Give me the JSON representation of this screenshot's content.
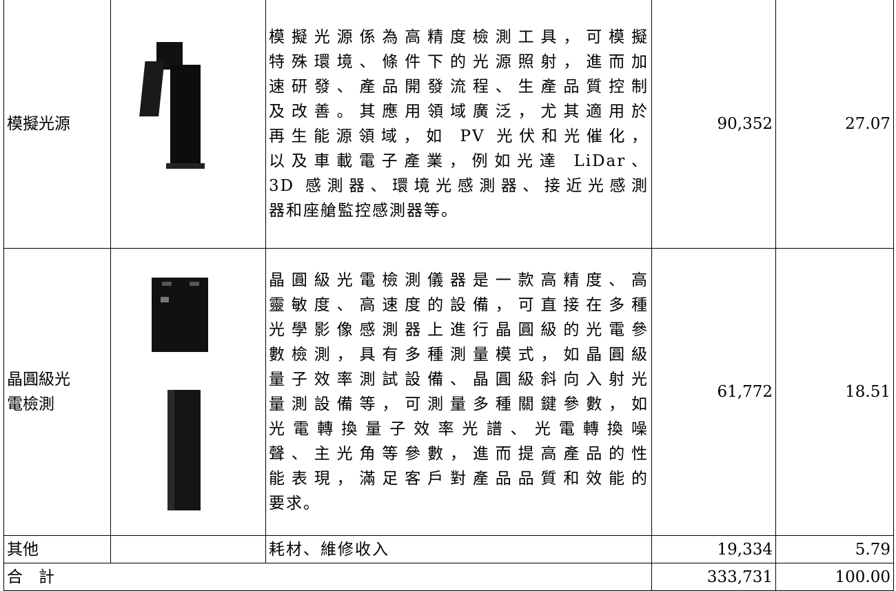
{
  "table": {
    "rows": [
      {
        "product": "模擬光源",
        "description": [
          "模擬光源係為高精度檢測工具，可模擬",
          "特殊環境、條件下的光源照射，進而加",
          "速研發、產品開發流程、生產品質控制",
          "及改善。其應用領域廣泛，尤其適用於",
          "再生能源領域，如 PV 光伏和光催化，",
          "以及車載電子產業，例如光達 LiDar、",
          "3D 感測器、環境光感測器、接近光感測",
          "器和座艙監控感測器等。"
        ],
        "amount": "90,352",
        "percent": "27.07"
      },
      {
        "product": "晶圓級光電檢測",
        "description": [
          "晶圓級光電檢測儀器是一款高精度、高",
          "靈敏度、高速度的設備，可直接在多種",
          "光學影像感測器上進行晶圓級的光電參",
          "數檢測，具有多種測量模式，如晶圓級",
          "量子效率測試設備、晶圓級斜向入射光",
          "量測設備等，可測量多種關鍵參數，如",
          "光電轉換量子效率光譜、光電轉換噪",
          "聲、主光角等參數，進而提高產品的性",
          "能表現，滿足客戶對產品品質和效能的",
          "要求。"
        ],
        "amount": "61,772",
        "percent": "18.51"
      },
      {
        "product": "其他",
        "description": [
          "耗材、維修收入"
        ],
        "amount": "19,334",
        "percent": "5.79"
      }
    ],
    "total": {
      "label": "合　計",
      "amount": "333,731",
      "percent": "100.00"
    }
  }
}
